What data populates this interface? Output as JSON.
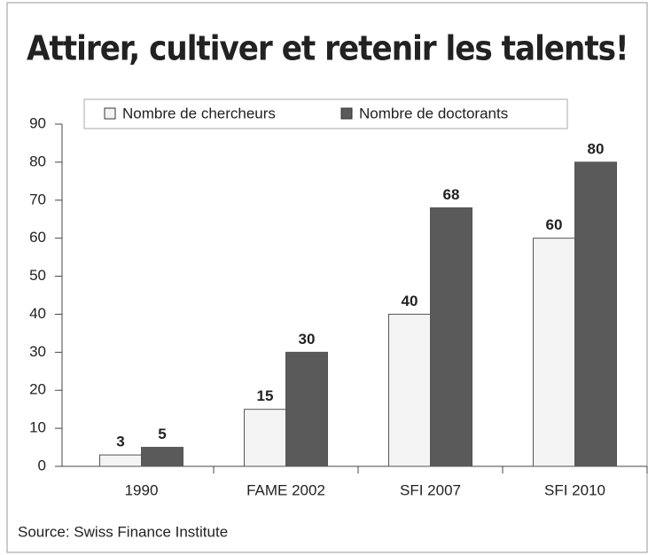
{
  "chart_data": {
    "type": "bar",
    "title": "Attirer, cultiver et retenir les talents!",
    "source": "Source: Swiss Finance Institute",
    "categories": [
      "1990",
      "FAME 2002",
      "SFI 2007",
      "SFI 2010"
    ],
    "series": [
      {
        "name": "Nombre de chercheurs",
        "color": "#f4f4f4",
        "values": [
          3,
          15,
          40,
          60
        ]
      },
      {
        "name": "Nombre de doctorants",
        "color": "#5a5a5a",
        "values": [
          5,
          30,
          68,
          80
        ]
      }
    ],
    "ylim": [
      0,
      90
    ],
    "yticks": [
      0,
      10,
      20,
      30,
      40,
      50,
      60,
      70,
      80,
      90
    ],
    "legend": "top"
  }
}
